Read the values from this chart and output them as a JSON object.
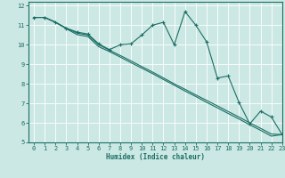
{
  "title": "",
  "xlabel": "Humidex (Indice chaleur)",
  "bg_color": "#cce8e4",
  "line_color": "#1a6e64",
  "grid_color": "#ffffff",
  "xlim": [
    -0.5,
    23
  ],
  "ylim": [
    5,
    12.2
  ],
  "xticks": [
    0,
    1,
    2,
    3,
    4,
    5,
    6,
    7,
    8,
    9,
    10,
    11,
    12,
    13,
    14,
    15,
    16,
    17,
    18,
    19,
    20,
    21,
    22,
    23
  ],
  "yticks": [
    5,
    6,
    7,
    8,
    9,
    10,
    11,
    12
  ],
  "x": [
    0,
    1,
    2,
    3,
    4,
    5,
    6,
    7,
    8,
    9,
    10,
    11,
    12,
    13,
    14,
    15,
    16,
    17,
    18,
    19,
    20,
    21,
    22,
    23
  ],
  "line1": [
    11.4,
    11.4,
    11.15,
    10.85,
    10.65,
    10.55,
    10.05,
    9.75,
    10.0,
    10.05,
    10.5,
    11.0,
    11.15,
    10.0,
    11.7,
    11.0,
    10.15,
    8.3,
    8.4,
    7.05,
    5.95,
    6.6,
    6.3,
    5.4
  ],
  "line2": [
    11.4,
    11.4,
    11.15,
    10.85,
    10.6,
    10.5,
    10.0,
    9.72,
    9.45,
    9.17,
    8.88,
    8.6,
    8.3,
    8.0,
    7.72,
    7.43,
    7.15,
    6.87,
    6.58,
    6.3,
    6.0,
    5.72,
    5.43,
    5.4
  ],
  "line3": [
    11.4,
    11.4,
    11.15,
    10.82,
    10.52,
    10.42,
    9.9,
    9.65,
    9.37,
    9.08,
    8.8,
    8.52,
    8.22,
    7.93,
    7.63,
    7.35,
    7.05,
    6.77,
    6.48,
    6.2,
    5.9,
    5.62,
    5.32,
    5.4
  ]
}
